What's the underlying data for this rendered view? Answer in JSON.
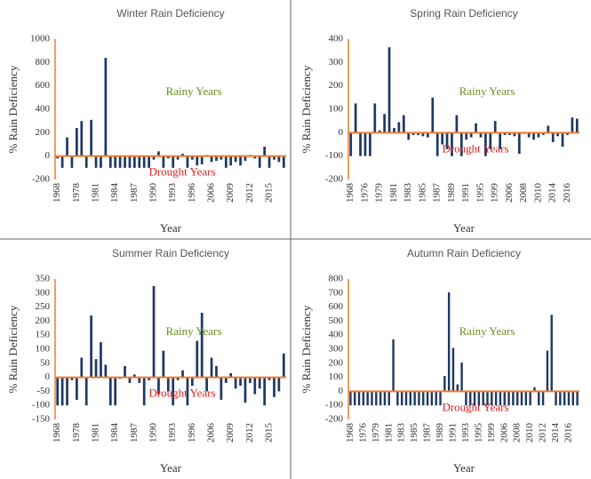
{
  "chart_data": [
    {
      "type": "bar",
      "title": "Winter Rain Deficiency",
      "x_label": "Year",
      "y_label": "% Rain Deficiency",
      "annotations": [
        "Rainy Years",
        "Drought Years"
      ],
      "color": "#1f3864",
      "zero_color": "#ed7d31",
      "categories": [
        "1968",
        null,
        null,
        null,
        "1978",
        null,
        null,
        null,
        "1981",
        null,
        null,
        null,
        "1984",
        null,
        null,
        null,
        "1987",
        null,
        null,
        null,
        "1990",
        null,
        null,
        null,
        "1993",
        null,
        null,
        null,
        "1996",
        null,
        null,
        null,
        "2006",
        null,
        null,
        null,
        "2009",
        null,
        null,
        null,
        "2012",
        null,
        null,
        null,
        "2015",
        null,
        null,
        null
      ],
      "values": [
        -20,
        -100,
        160,
        -100,
        240,
        300,
        -100,
        310,
        -100,
        -100,
        840,
        -100,
        -100,
        -100,
        -100,
        -100,
        -100,
        -100,
        -100,
        -100,
        -30,
        40,
        -100,
        -20,
        -100,
        -30,
        20,
        -100,
        -30,
        -80,
        -70,
        10,
        -50,
        -40,
        -30,
        -100,
        -80,
        -50,
        -80,
        -40,
        10,
        -20,
        -100,
        80,
        -100,
        -30,
        -50,
        -100
      ],
      "ylim": [
        -200,
        1000
      ],
      "yticks": [
        -200,
        0,
        200,
        400,
        600,
        800,
        1000
      ]
    },
    {
      "type": "bar",
      "title": "Spring Rain Deficiency",
      "x_label": "Year",
      "y_label": "% Rain Deficiency",
      "annotations": [
        "Rainy Years",
        "Drought Years"
      ],
      "color": "#1f3864",
      "zero_color": "#ed7d31",
      "categories": [
        "1968",
        null,
        null,
        "1976",
        null,
        null,
        "1979",
        null,
        null,
        "1981",
        null,
        null,
        "1983",
        null,
        null,
        "1985",
        null,
        null,
        "1987",
        null,
        null,
        "1989",
        null,
        null,
        "1991",
        null,
        null,
        "1995",
        null,
        null,
        "1999",
        null,
        null,
        "2006",
        null,
        null,
        "2008",
        null,
        null,
        "2010",
        null,
        null,
        "2014",
        null,
        null,
        "2016",
        null,
        null
      ],
      "values": [
        -100,
        125,
        -100,
        -100,
        -100,
        125,
        10,
        80,
        365,
        20,
        45,
        75,
        -30,
        -10,
        -10,
        -15,
        -20,
        150,
        -100,
        -50,
        -70,
        -100,
        75,
        -100,
        -30,
        -20,
        40,
        -20,
        -100,
        -70,
        50,
        -70,
        -10,
        -10,
        -15,
        -90,
        -5,
        -20,
        -30,
        -20,
        -10,
        30,
        -40,
        -15,
        -60,
        -10,
        65,
        60
      ],
      "ylim": [
        -200,
        400
      ],
      "yticks": [
        -200,
        -100,
        0,
        100,
        200,
        300,
        400
      ]
    },
    {
      "type": "bar",
      "title": "Summer Rain Deficiency",
      "x_label": "Year",
      "y_label": "% Rain Deficiency",
      "annotations": [
        "Rainy Years",
        "Drought Years"
      ],
      "color": "#1f3864",
      "zero_color": "#ed7d31",
      "categories": [
        "1968",
        null,
        null,
        null,
        "1978",
        null,
        null,
        null,
        "1981",
        null,
        null,
        null,
        "1984",
        null,
        null,
        null,
        "1987",
        null,
        null,
        null,
        "1990",
        null,
        null,
        null,
        "1993",
        null,
        null,
        null,
        "1996",
        null,
        null,
        null,
        "2006",
        null,
        null,
        null,
        "2009",
        null,
        null,
        null,
        "2012",
        null,
        null,
        null,
        "2015",
        null,
        null,
        null
      ],
      "values": [
        -100,
        -100,
        -100,
        -10,
        -80,
        70,
        -100,
        220,
        65,
        125,
        45,
        -100,
        -100,
        -5,
        40,
        -20,
        10,
        -20,
        -100,
        -10,
        325,
        -60,
        95,
        -50,
        -100,
        -10,
        25,
        -100,
        -30,
        130,
        230,
        -50,
        70,
        40,
        -80,
        -20,
        15,
        -40,
        -30,
        -90,
        -20,
        -60,
        -40,
        -100,
        -10,
        -70,
        -50,
        85
      ],
      "ylim": [
        -150,
        350
      ],
      "yticks": [
        -150,
        -100,
        -50,
        0,
        50,
        100,
        150,
        200,
        250,
        300,
        350
      ]
    },
    {
      "type": "bar",
      "title": "Autumn Rain Deficiency",
      "x_label": "Year",
      "y_label": "% Rain Deficiency",
      "annotations": [
        "Rainy Years",
        "Drought Years"
      ],
      "color": "#1f3864",
      "zero_color": "#ed7d31",
      "categories": [
        "1968",
        null,
        null,
        "1976",
        null,
        null,
        "1979",
        null,
        null,
        "1981",
        null,
        null,
        "1983",
        null,
        null,
        "1985",
        null,
        null,
        "1987",
        null,
        null,
        "1989",
        null,
        null,
        "1991",
        null,
        null,
        "1993",
        null,
        null,
        "1995",
        null,
        null,
        "1999",
        null,
        null,
        "2006",
        null,
        null,
        "2008",
        null,
        null,
        "2010",
        null,
        null,
        "2012",
        null,
        null,
        "2014",
        null,
        null,
        "2016",
        null,
        null
      ],
      "values": [
        -100,
        -100,
        -100,
        -100,
        -100,
        -100,
        -100,
        -100,
        -100,
        -100,
        370,
        -100,
        -100,
        -100,
        -100,
        -100,
        -100,
        -100,
        -100,
        -100,
        -100,
        -100,
        110,
        705,
        310,
        50,
        205,
        -100,
        -100,
        -100,
        -100,
        -100,
        -100,
        -100,
        -100,
        -100,
        -100,
        -100,
        -100,
        -100,
        -100,
        -100,
        -100,
        30,
        -100,
        -100,
        290,
        545,
        -100,
        -100,
        -100,
        -100,
        -100,
        -100
      ],
      "ylim": [
        -200,
        800
      ],
      "yticks": [
        -200,
        -100,
        0,
        100,
        200,
        300,
        400,
        500,
        600,
        700,
        800
      ]
    }
  ]
}
